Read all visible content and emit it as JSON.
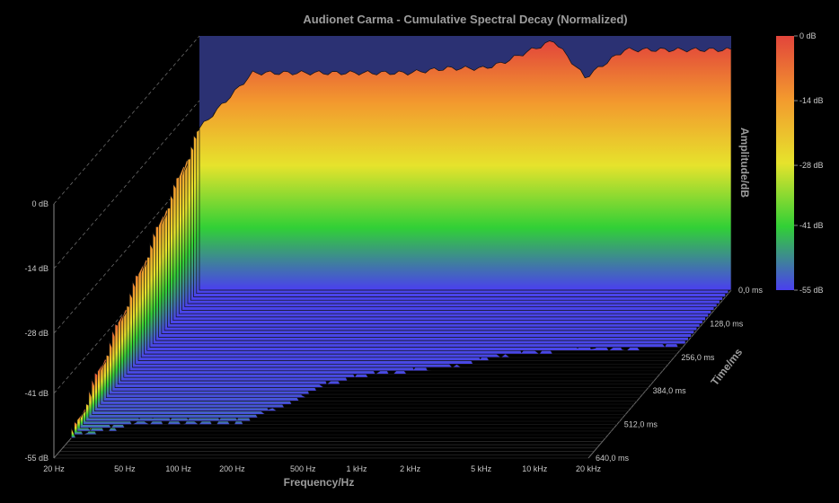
{
  "chart_data": {
    "type": "waterfall-3d",
    "title": "Audionet Carma - Cumulative Spectral Decay (Normalized)",
    "xlabel": "Frequency/Hz",
    "ylabel": "Amplitude/dB",
    "zlabel": "Time/ms",
    "x_scale": "log",
    "xlim": [
      20,
      20000
    ],
    "ylim": [
      -55,
      0
    ],
    "zlim": [
      0,
      640
    ],
    "x_ticks": [
      {
        "value": 20,
        "label": "20 Hz"
      },
      {
        "value": 50,
        "label": "50 Hz"
      },
      {
        "value": 100,
        "label": "100 Hz"
      },
      {
        "value": 200,
        "label": "200 Hz"
      },
      {
        "value": 500,
        "label": "500 Hz"
      },
      {
        "value": 1000,
        "label": "1 kHz"
      },
      {
        "value": 2000,
        "label": "2 kHz"
      },
      {
        "value": 5000,
        "label": "5 kHz"
      },
      {
        "value": 10000,
        "label": "10 kHz"
      },
      {
        "value": 20000,
        "label": "20 kHz"
      }
    ],
    "y_ticks": [
      {
        "value": 0,
        "label": "0 dB"
      },
      {
        "value": -14,
        "label": "-14 dB"
      },
      {
        "value": -28,
        "label": "-28 dB"
      },
      {
        "value": -41,
        "label": "-41 dB"
      },
      {
        "value": -55,
        "label": "-55 dB"
      }
    ],
    "z_ticks": [
      {
        "value": 0,
        "label": "0,0 ms"
      },
      {
        "value": 128,
        "label": "128,0 ms"
      },
      {
        "value": 256,
        "label": "256,0 ms"
      },
      {
        "value": 384,
        "label": "384,0 ms"
      },
      {
        "value": 512,
        "label": "512,0 ms"
      },
      {
        "value": 640,
        "label": "640,0 ms"
      }
    ],
    "colorbar": {
      "labels": [
        {
          "value": 0,
          "label": "0 dB"
        },
        {
          "value": -14,
          "label": "-14 dB"
        },
        {
          "value": -28,
          "label": "-28 dB"
        },
        {
          "value": -41,
          "label": "-41 dB"
        },
        {
          "value": -55,
          "label": "-55 dB"
        }
      ],
      "colors": [
        "#e2453b",
        "#f39a2e",
        "#e6e32c",
        "#31d036",
        "#4a3ff0"
      ]
    },
    "decay_profile": {
      "freq_hz": [
        20,
        40,
        70,
        100,
        150,
        200,
        300,
        500,
        800,
        1000,
        1500,
        2000,
        3000,
        5000,
        8000,
        12000,
        20000
      ],
      "start_db": [
        -20,
        -8,
        -8,
        -8,
        -8,
        -8,
        -8,
        -7,
        -7,
        -6,
        -3,
        -1,
        -9,
        -3,
        -3,
        -3,
        -3
      ],
      "end_time_ms": [
        575,
        520,
        520,
        520,
        520,
        470,
        370,
        325,
        320,
        310,
        290,
        260,
        250,
        240,
        235,
        230,
        220
      ]
    },
    "background_color": "#000000",
    "back_wall_color": "#2b3173",
    "grid": true,
    "legend": "right"
  }
}
